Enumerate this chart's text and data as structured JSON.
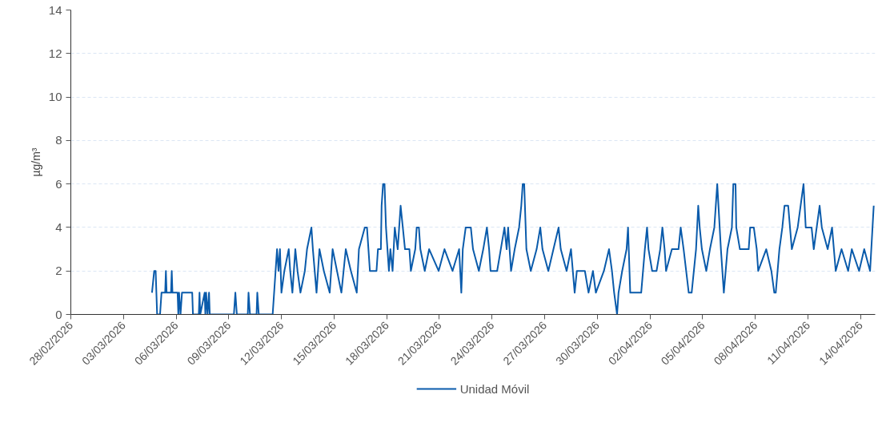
{
  "chart_data": {
    "type": "line",
    "ylabel": "µg/m³",
    "xlim": [
      "2026-02-28",
      "2026-04-14T20:00"
    ],
    "xticks": [
      {
        "value": "2026-02-28",
        "label": "28/02/2026"
      },
      {
        "value": "2026-03-03",
        "label": "03/03/2026"
      },
      {
        "value": "2026-03-06",
        "label": "06/03/2026"
      },
      {
        "value": "2026-03-09",
        "label": "09/03/2026"
      },
      {
        "value": "2026-03-12",
        "label": "12/03/2026"
      },
      {
        "value": "2026-03-15",
        "label": "15/03/2026"
      },
      {
        "value": "2026-03-18",
        "label": "18/03/2026"
      },
      {
        "value": "2026-03-21",
        "label": "21/03/2026"
      },
      {
        "value": "2026-03-24",
        "label": "24/03/2026"
      },
      {
        "value": "2026-03-27",
        "label": "27/03/2026"
      },
      {
        "value": "2026-03-30",
        "label": "30/03/2026"
      },
      {
        "value": "2026-04-02",
        "label": "02/04/2026"
      },
      {
        "value": "2026-04-05",
        "label": "05/04/2026"
      },
      {
        "value": "2026-04-08",
        "label": "08/04/2026"
      },
      {
        "value": "2026-04-11",
        "label": "11/04/2026"
      },
      {
        "value": "2026-04-14",
        "label": "14/04/2026"
      }
    ],
    "ylim": [
      0,
      14
    ],
    "yticks": [
      0,
      2,
      4,
      6,
      8,
      10,
      12,
      14
    ],
    "grid": "y",
    "legend": "bottom",
    "marker": "none",
    "line_style": "solid",
    "series": [
      {
        "name": "Unidad Móvil",
        "color": "#0a5bab",
        "x": [
          "2026-03-04T15:00",
          "2026-03-04T18:00",
          "2026-03-04T20:00",
          "2026-03-04T22:00",
          "2026-03-05T02:00",
          "2026-03-05T04:00",
          "2026-03-05T09:00",
          "2026-03-05T10:00",
          "2026-03-05T11:00",
          "2026-03-05T17:00",
          "2026-03-05T18:00",
          "2026-03-05T19:00",
          "2026-03-06T02:00",
          "2026-03-06T03:00",
          "2026-03-06T04:00",
          "2026-03-06T06:00",
          "2026-03-06T08:00",
          "2026-03-06T22:00",
          "2026-03-06T23:00",
          "2026-03-07T07:00",
          "2026-03-07T08:00",
          "2026-03-07T09:00",
          "2026-03-07T15:00",
          "2026-03-07T16:00",
          "2026-03-07T17:00",
          "2026-03-07T19:00",
          "2026-03-07T21:00",
          "2026-03-07T22:00",
          "2026-03-09T07:00",
          "2026-03-09T09:00",
          "2026-03-09T11:00",
          "2026-03-10T02:00",
          "2026-03-10T03:00",
          "2026-03-10T05:00",
          "2026-03-10T14:00",
          "2026-03-10T15:00",
          "2026-03-10T17:00",
          "2026-03-11T12:00",
          "2026-03-11T16:00",
          "2026-03-11T18:00",
          "2026-03-11T20:00",
          "2026-03-11T22:00",
          "2026-03-12T00:00",
          "2026-03-12T04:00",
          "2026-03-12T10:00",
          "2026-03-12T12:00",
          "2026-03-12T15:00",
          "2026-03-12T19:00",
          "2026-03-12T22:00",
          "2026-03-13T02:00",
          "2026-03-13T08:00",
          "2026-03-13T11:00",
          "2026-03-13T17:00",
          "2026-03-13T19:00",
          "2026-03-14T00:00",
          "2026-03-14T04:00",
          "2026-03-14T10:00",
          "2026-03-14T18:00",
          "2026-03-14T22:00",
          "2026-03-15T04:00",
          "2026-03-15T10:00",
          "2026-03-15T16:00",
          "2026-03-15T23:00",
          "2026-03-16T07:00",
          "2026-03-16T10:00",
          "2026-03-16T18:00",
          "2026-03-16T21:00",
          "2026-03-17T01:00",
          "2026-03-17T10:00",
          "2026-03-17T12:00",
          "2026-03-17T16:00",
          "2026-03-17T17:00",
          "2026-03-17T19:00",
          "2026-03-17T21:00",
          "2026-03-17T23:00",
          "2026-03-18T01:00",
          "2026-03-18T03:00",
          "2026-03-18T05:00",
          "2026-03-18T08:00",
          "2026-03-18T11:00",
          "2026-03-18T15:00",
          "2026-03-18T19:00",
          "2026-03-18T22:00",
          "2026-03-19T01:00",
          "2026-03-19T07:00",
          "2026-03-19T09:00",
          "2026-03-19T15:00",
          "2026-03-19T17:00",
          "2026-03-19T20:00",
          "2026-03-19T22:00",
          "2026-03-20T04:00",
          "2026-03-20T10:00",
          "2026-03-20T23:00",
          "2026-03-21T07:00",
          "2026-03-21T18:00",
          "2026-03-22T03:00",
          "2026-03-22T06:00",
          "2026-03-22T08:00",
          "2026-03-22T12:00",
          "2026-03-22T19:00",
          "2026-03-22T22:00",
          "2026-03-23T06:00",
          "2026-03-23T12:00",
          "2026-03-23T17:00",
          "2026-03-23T20:00",
          "2026-03-23T22:00",
          "2026-03-24T07:00",
          "2026-03-24T12:00",
          "2026-03-24T17:00",
          "2026-03-24T20:00",
          "2026-03-24T22:00",
          "2026-03-25T02:00",
          "2026-03-25T07:00",
          "2026-03-25T13:00",
          "2026-03-25T16:00",
          "2026-03-25T18:00",
          "2026-03-25T20:00",
          "2026-03-25T23:00",
          "2026-03-26T05:00",
          "2026-03-26T13:00",
          "2026-03-26T18:00",
          "2026-03-26T21:00",
          "2026-03-27T05:00",
          "2026-03-27T12:00",
          "2026-03-27T19:00",
          "2026-03-27T22:00",
          "2026-03-28T06:00",
          "2026-03-28T12:00",
          "2026-03-28T17:00",
          "2026-03-28T20:00",
          "2026-03-29T07:00",
          "2026-03-29T12:00",
          "2026-03-29T18:00",
          "2026-03-29T22:00",
          "2026-03-30T09:00",
          "2026-03-30T16:00",
          "2026-03-30T20:00",
          "2026-03-30T23:00",
          "2026-03-31T03:00",
          "2026-03-31T05:00",
          "2026-03-31T10:00",
          "2026-03-31T16:00",
          "2026-03-31T18:00",
          "2026-03-31T21:00",
          "2026-04-01T12:00",
          "2026-04-01T17:00",
          "2026-04-01T20:00",
          "2026-04-01T22:00",
          "2026-04-02T03:00",
          "2026-04-02T09:00",
          "2026-04-02T14:00",
          "2026-04-02T17:00",
          "2026-04-02T20:00",
          "2026-04-02T22:00",
          "2026-04-03T06:00",
          "2026-04-03T15:00",
          "2026-04-03T18:00",
          "2026-04-03T22:00",
          "2026-04-04T05:00",
          "2026-04-04T09:00",
          "2026-04-04T15:00",
          "2026-04-04T18:00",
          "2026-04-04T20:00",
          "2026-04-04T23:00",
          "2026-04-05T05:00",
          "2026-04-05T10:00",
          "2026-04-05T16:00",
          "2026-04-05T20:00",
          "2026-04-06T01:00",
          "2026-04-06T05:00",
          "2026-04-06T10:00",
          "2026-04-06T16:00",
          "2026-04-06T18:00",
          "2026-04-06T21:00",
          "2026-04-06T22:00",
          "2026-04-07T03:00",
          "2026-04-07T15:00",
          "2026-04-07T17:00",
          "2026-04-07T22:00",
          "2026-04-08T02:00",
          "2026-04-08T04:00",
          "2026-04-08T15:00",
          "2026-04-08T22:00",
          "2026-04-09T02:00",
          "2026-04-09T04:00",
          "2026-04-09T09:00",
          "2026-04-09T13:00",
          "2026-04-09T16:00",
          "2026-04-09T21:00",
          "2026-04-10T02:00",
          "2026-04-10T10:00",
          "2026-04-10T18:00",
          "2026-04-10T21:00",
          "2026-04-11T05:00",
          "2026-04-11T08:00",
          "2026-04-11T12:00",
          "2026-04-11T16:00",
          "2026-04-11T19:00",
          "2026-04-12T03:00",
          "2026-04-12T09:00",
          "2026-04-12T14:00",
          "2026-04-12T22:00",
          "2026-04-13T07:00",
          "2026-04-13T12:00",
          "2026-04-13T22:00",
          "2026-04-14T05:00",
          "2026-04-14T13:00",
          "2026-04-14T18:00"
        ],
        "values": [
          1,
          2,
          2,
          0,
          0,
          1,
          1,
          2,
          1,
          1,
          2,
          1,
          1,
          0,
          1,
          0,
          1,
          1,
          0,
          0,
          1,
          0,
          1,
          0,
          1,
          0,
          1,
          0,
          0,
          1,
          0,
          0,
          1,
          0,
          0,
          1,
          0,
          0,
          2,
          3,
          2,
          3,
          1,
          2,
          3,
          2,
          1,
          3,
          2,
          1,
          2,
          3,
          4,
          3,
          1,
          3,
          2,
          1,
          3,
          2,
          1,
          3,
          2,
          1,
          3,
          4,
          4,
          2,
          2,
          3,
          3,
          5,
          6,
          6,
          4,
          3,
          2,
          3,
          2,
          4,
          3,
          5,
          4,
          3,
          3,
          2,
          3,
          4,
          4,
          3,
          2,
          3,
          2,
          3,
          2,
          3,
          1,
          3,
          4,
          4,
          3,
          2,
          3,
          4,
          3,
          2,
          2,
          3,
          4,
          3,
          4,
          2,
          3,
          4,
          5,
          6,
          6,
          3,
          2,
          3,
          4,
          3,
          2,
          3,
          4,
          3,
          2,
          3,
          1,
          2,
          2,
          1,
          2,
          1,
          2,
          3,
          2,
          1,
          0,
          1,
          2,
          3,
          4,
          1,
          1,
          3,
          4,
          3,
          2,
          2,
          3,
          4,
          3,
          2,
          3,
          3,
          4,
          3,
          1,
          1,
          3,
          5,
          4,
          3,
          2,
          3,
          4,
          6,
          3,
          1,
          3,
          4,
          6,
          6,
          4,
          3,
          3,
          4,
          4,
          3,
          2,
          3,
          2,
          1,
          1,
          3,
          4,
          5,
          5,
          3,
          4,
          6,
          4,
          4,
          3,
          4,
          5,
          4,
          3,
          4,
          2,
          3,
          2,
          3,
          2,
          3,
          2,
          5
        ]
      }
    ]
  }
}
